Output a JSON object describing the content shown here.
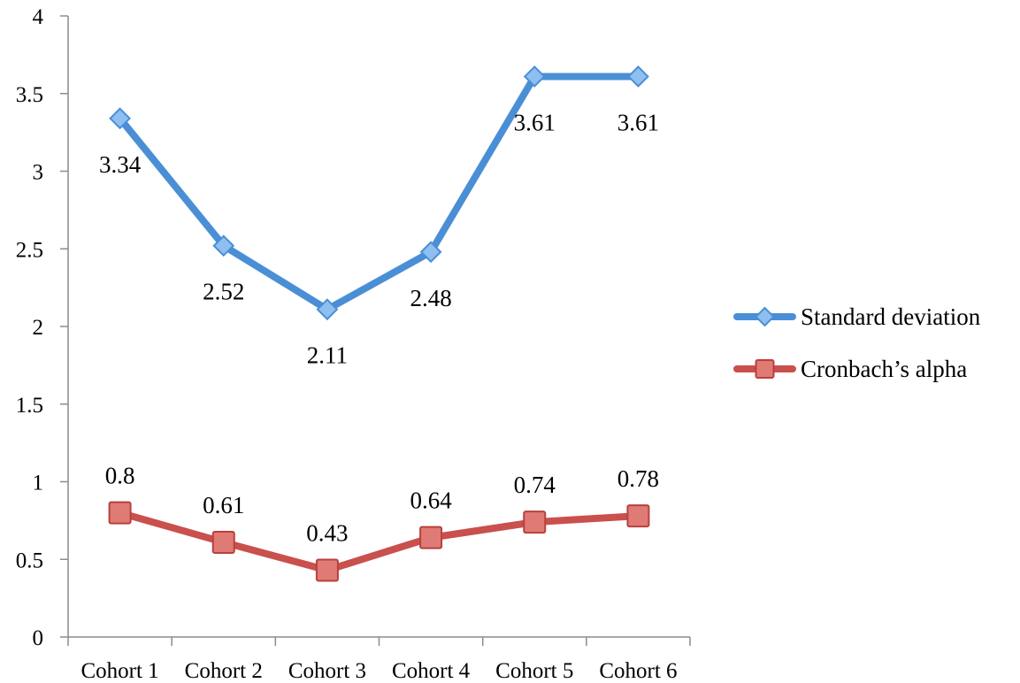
{
  "chart_data": {
    "type": "line",
    "categories": [
      "Cohort 1",
      "Cohort 2",
      "Cohort 3",
      "Cohort 4",
      "Cohort 5",
      "Cohort 6"
    ],
    "series": [
      {
        "name": "Standard deviation",
        "values": [
          3.34,
          2.52,
          2.11,
          2.48,
          3.61,
          3.61
        ],
        "labels": [
          "3.34",
          "2.52",
          "2.11",
          "2.48",
          "3.61",
          "3.61"
        ],
        "color": "#4a8fd6",
        "marker": "diamond",
        "label_position": "below"
      },
      {
        "name": "Cronbach’s alpha",
        "values": [
          0.8,
          0.61,
          0.43,
          0.64,
          0.74,
          0.78
        ],
        "labels": [
          "0.8",
          "0.61",
          "0.43",
          "0.64",
          "0.74",
          "0.78"
        ],
        "color": "#c9504c",
        "marker": "square",
        "label_position": "above"
      }
    ],
    "ylim": [
      0,
      4
    ],
    "y_ticks": [
      "0",
      "0.5",
      "1",
      "1.5",
      "2",
      "2.5",
      "3",
      "3.5",
      "4"
    ],
    "title": "",
    "xlabel": "",
    "ylabel": "",
    "grid": false,
    "legend_position": "right"
  }
}
